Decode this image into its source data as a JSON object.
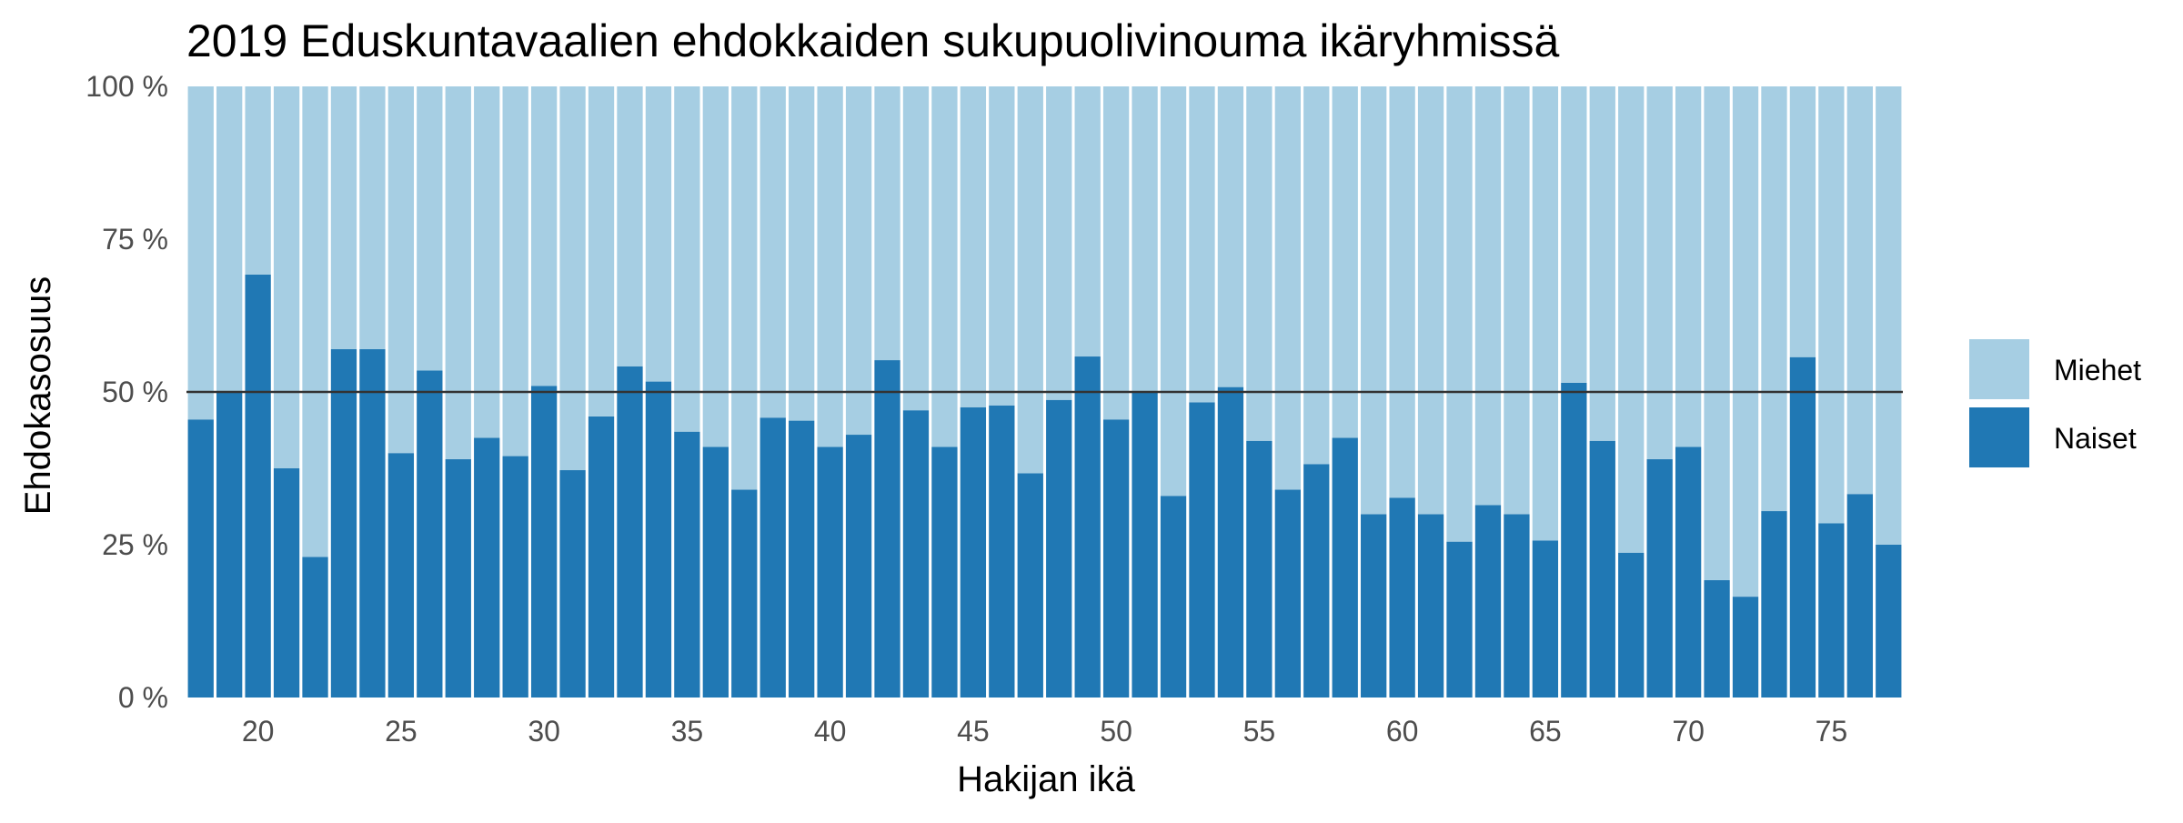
{
  "chart_data": {
    "type": "bar",
    "stacked": true,
    "title": "2019 Eduskuntavaalien ehdokkaiden sukupuolivinouma ikäryhmissä",
    "xlabel": "Hakijan ikä",
    "ylabel": "Ehdokasosuus",
    "xlim": [
      17.5,
      77.5
    ],
    "ylim": [
      0,
      1
    ],
    "x_ticks": [
      20,
      25,
      30,
      35,
      40,
      45,
      50,
      55,
      60,
      65,
      70,
      75
    ],
    "x_tick_labels": [
      "20",
      "25",
      "30",
      "35",
      "40",
      "45",
      "50",
      "55",
      "60",
      "65",
      "70",
      "75"
    ],
    "y_ticks": [
      0,
      0.25,
      0.5,
      0.75,
      1.0
    ],
    "y_tick_labels": [
      "0 %",
      "25 %",
      "50 %",
      "75 %",
      "100 %"
    ],
    "reference_line": 0.5,
    "grid": false,
    "legend_position": "right",
    "x": [
      18,
      19,
      20,
      21,
      22,
      23,
      24,
      25,
      26,
      27,
      28,
      29,
      30,
      31,
      32,
      33,
      34,
      35,
      36,
      37,
      38,
      39,
      40,
      41,
      42,
      43,
      44,
      45,
      46,
      47,
      48,
      49,
      50,
      51,
      52,
      53,
      54,
      55,
      56,
      57,
      58,
      59,
      60,
      61,
      62,
      63,
      64,
      65,
      66,
      67,
      68,
      69,
      70,
      71,
      72,
      73,
      74,
      75,
      76,
      77
    ],
    "series": [
      {
        "name": "Naiset",
        "color": "#2078b4",
        "values": [
          0.455,
          0.5,
          0.692,
          0.375,
          0.23,
          0.57,
          0.57,
          0.4,
          0.535,
          0.39,
          0.425,
          0.395,
          0.51,
          0.372,
          0.46,
          0.542,
          0.517,
          0.435,
          0.41,
          0.34,
          0.458,
          0.453,
          0.41,
          0.43,
          0.552,
          0.47,
          0.41,
          0.475,
          0.478,
          0.367,
          0.487,
          0.558,
          0.455,
          0.5,
          0.33,
          0.483,
          0.508,
          0.42,
          0.34,
          0.382,
          0.425,
          0.3,
          0.327,
          0.3,
          0.255,
          0.315,
          0.3,
          0.257,
          0.515,
          0.42,
          0.237,
          0.39,
          0.41,
          0.192,
          0.165,
          0.305,
          0.557,
          0.285,
          0.333,
          0.25
        ]
      },
      {
        "name": "Miehet",
        "color": "#a6cee3",
        "values": [
          0.545,
          0.5,
          0.308,
          0.625,
          0.77,
          0.43,
          0.43,
          0.6,
          0.465,
          0.61,
          0.575,
          0.605,
          0.49,
          0.628,
          0.54,
          0.458,
          0.483,
          0.565,
          0.59,
          0.66,
          0.542,
          0.547,
          0.59,
          0.57,
          0.448,
          0.53,
          0.59,
          0.525,
          0.522,
          0.633,
          0.513,
          0.442,
          0.545,
          0.5,
          0.67,
          0.517,
          0.492,
          0.58,
          0.66,
          0.618,
          0.575,
          0.7,
          0.673,
          0.7,
          0.745,
          0.685,
          0.7,
          0.743,
          0.485,
          0.58,
          0.763,
          0.61,
          0.59,
          0.808,
          0.835,
          0.695,
          0.443,
          0.715,
          0.667,
          0.75
        ]
      }
    ],
    "legend": [
      {
        "label": "Miehet",
        "color": "#a6cee3"
      },
      {
        "label": "Naiset",
        "color": "#2078b4"
      }
    ]
  }
}
